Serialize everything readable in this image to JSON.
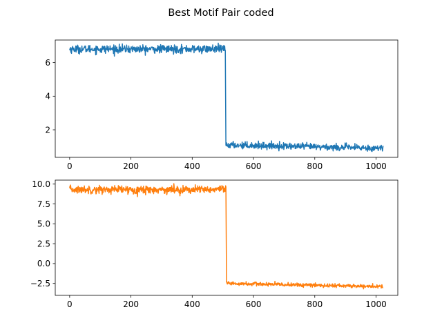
{
  "figure": {
    "title": "Best Motif Pair coded"
  },
  "chart_data": [
    {
      "type": "line",
      "title": "",
      "xlabel": "",
      "ylabel": "",
      "xlim": [
        -47,
        1071
      ],
      "ylim": [
        0.36,
        7.34
      ],
      "xticks": [
        0,
        200,
        400,
        600,
        800,
        1000
      ],
      "xtick_labels": [
        "0",
        "200",
        "400",
        "600",
        "800",
        "1000"
      ],
      "yticks": [
        2,
        4,
        6
      ],
      "ytick_labels": [
        "2",
        "4",
        "6"
      ],
      "grid": false,
      "legend": "none",
      "series": [
        {
          "color": "#1f77b4",
          "segments": [
            {
              "x_start": 0,
              "x_end": 508,
              "n_points": 509,
              "level": 6.8,
              "noise": 0.12
            },
            {
              "x_start": 510,
              "x_end": 1023,
              "n_points": 514,
              "level_start": 1.1,
              "level_end": 0.9,
              "noise": 0.1
            }
          ],
          "x": [
            0,
            508,
            510,
            1023
          ],
          "y": [
            6.85,
            6.8,
            1.1,
            0.9
          ]
        }
      ]
    },
    {
      "type": "line",
      "title": "",
      "xlabel": "",
      "ylabel": "",
      "xlim": [
        -47,
        1071
      ],
      "ylim": [
        -4.0,
        10.5
      ],
      "xticks": [
        0,
        200,
        400,
        600,
        800,
        1000
      ],
      "xtick_labels": [
        "0",
        "200",
        "400",
        "600",
        "800",
        "1000"
      ],
      "yticks": [
        -2.5,
        0.0,
        2.5,
        5.0,
        7.5,
        10.0
      ],
      "ytick_labels": [
        "−2.5",
        "0.0",
        "2.5",
        "5.0",
        "7.5",
        "10.0"
      ],
      "grid": false,
      "legend": "none",
      "series": [
        {
          "color": "#ff7f0e",
          "segments": [
            {
              "x_start": 0,
              "x_end": 510,
              "n_points": 511,
              "level": 9.3,
              "noise": 0.25
            },
            {
              "x_start": 512,
              "x_end": 1023,
              "n_points": 512,
              "level_start": -2.5,
              "level_end": -2.9,
              "noise": 0.12
            }
          ],
          "x": [
            0,
            510,
            512,
            1023
          ],
          "y": [
            9.2,
            9.3,
            -2.5,
            -2.9
          ]
        }
      ]
    }
  ]
}
